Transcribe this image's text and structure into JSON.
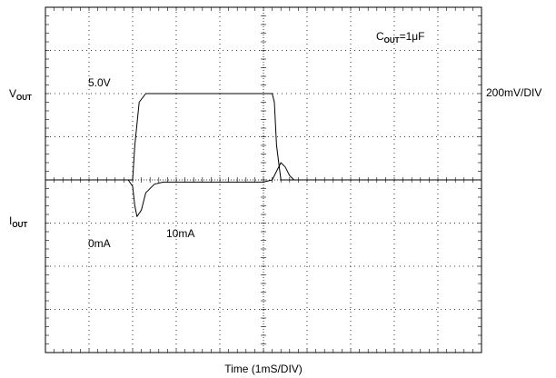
{
  "chart_data": {
    "type": "line",
    "title": "",
    "xlabel": "Time (1mS/DIV)",
    "xlim": [
      0,
      10
    ],
    "x_divisions": 10,
    "y_divisions": 8,
    "annotation": {
      "main": "C",
      "sub": "OUT",
      "rest": "=1μF"
    },
    "grid": true,
    "series": [
      {
        "name": "V",
        "name_sub": "OUT",
        "scale_label": "200mV/DIV",
        "level_labels": [
          "5.0V"
        ],
        "unit_per_div": 0.2,
        "baseline": 5.0,
        "ylim": [
          4.2,
          5.8
        ],
        "x": [
          0,
          0.4,
          0.8,
          1.2,
          1.6,
          1.9,
          2.0,
          2.05,
          2.1,
          2.2,
          2.3,
          2.5,
          2.7,
          2.9,
          3.0,
          3.5,
          4.0,
          4.5,
          5.0,
          5.2,
          5.3,
          5.4,
          5.5,
          5.6,
          5.7,
          5.9,
          6.2,
          6.5,
          7.0,
          7.5,
          8.0,
          8.5,
          9.0,
          9.5,
          10.0
        ],
        "y": [
          5.0,
          5.0,
          5.0,
          5.0,
          5.0,
          5.0,
          4.97,
          4.88,
          4.83,
          4.86,
          4.94,
          4.98,
          4.99,
          4.99,
          4.99,
          4.99,
          4.99,
          4.99,
          4.99,
          5.0,
          5.04,
          5.08,
          5.06,
          5.02,
          5.0,
          5.0,
          5.0,
          5.0,
          5.0,
          5.0,
          5.0,
          5.0,
          5.0,
          5.0,
          5.0
        ]
      },
      {
        "name": "I",
        "name_sub": "OUT",
        "level_labels": [
          "0mA",
          "10mA"
        ],
        "baseline_units": 0,
        "ylim": [
          -20,
          20
        ],
        "x": [
          0,
          1.9,
          2.0,
          2.05,
          2.15,
          2.3,
          3.0,
          4.0,
          5.0,
          5.2,
          5.25,
          5.3,
          5.4,
          6.0,
          7.0,
          8.0,
          9.0,
          10.0
        ],
        "y": [
          0,
          0,
          0,
          4,
          9,
          10,
          10,
          10,
          10,
          10,
          9,
          4,
          0,
          0,
          0,
          0,
          0,
          0
        ]
      }
    ]
  }
}
